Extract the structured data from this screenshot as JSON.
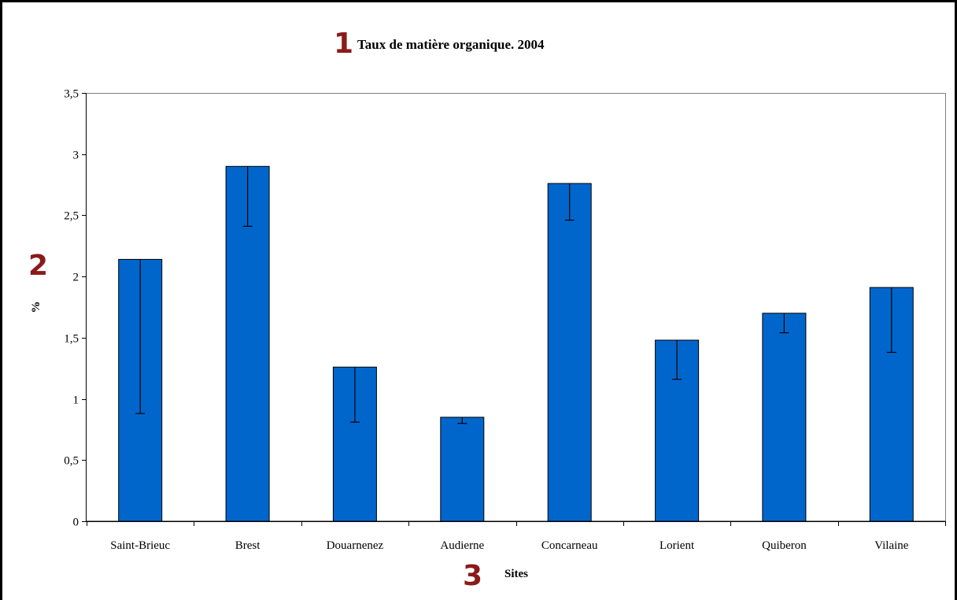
{
  "chart_data": {
    "type": "bar",
    "title": "Taux de matière organique. 2004",
    "xlabel": "Sites",
    "ylabel": "%",
    "categories": [
      "Saint-Brieuc",
      "Brest",
      "Douarnenez",
      "Audierne",
      "Concarneau",
      "Lorient",
      "Quiberon",
      "Vilaine"
    ],
    "series": [
      {
        "values": [
          2.14,
          2.9,
          1.26,
          0.85,
          2.76,
          1.48,
          1.7,
          1.91
        ],
        "error_low": [
          0.88,
          2.41,
          0.81,
          0.8,
          2.46,
          1.16,
          1.54,
          1.38
        ],
        "color": "#0066CC"
      }
    ],
    "ylim": [
      0,
      3.5
    ],
    "yticks": [
      "0",
      "0,5",
      "1",
      "1,5",
      "2",
      "2,5",
      "3",
      "3,5"
    ],
    "grid": false,
    "legend": "none"
  },
  "markers": {
    "title_marker": "1",
    "ylabel_marker": "2",
    "xlabel_marker": "3",
    "color": "#8B1A1A"
  }
}
